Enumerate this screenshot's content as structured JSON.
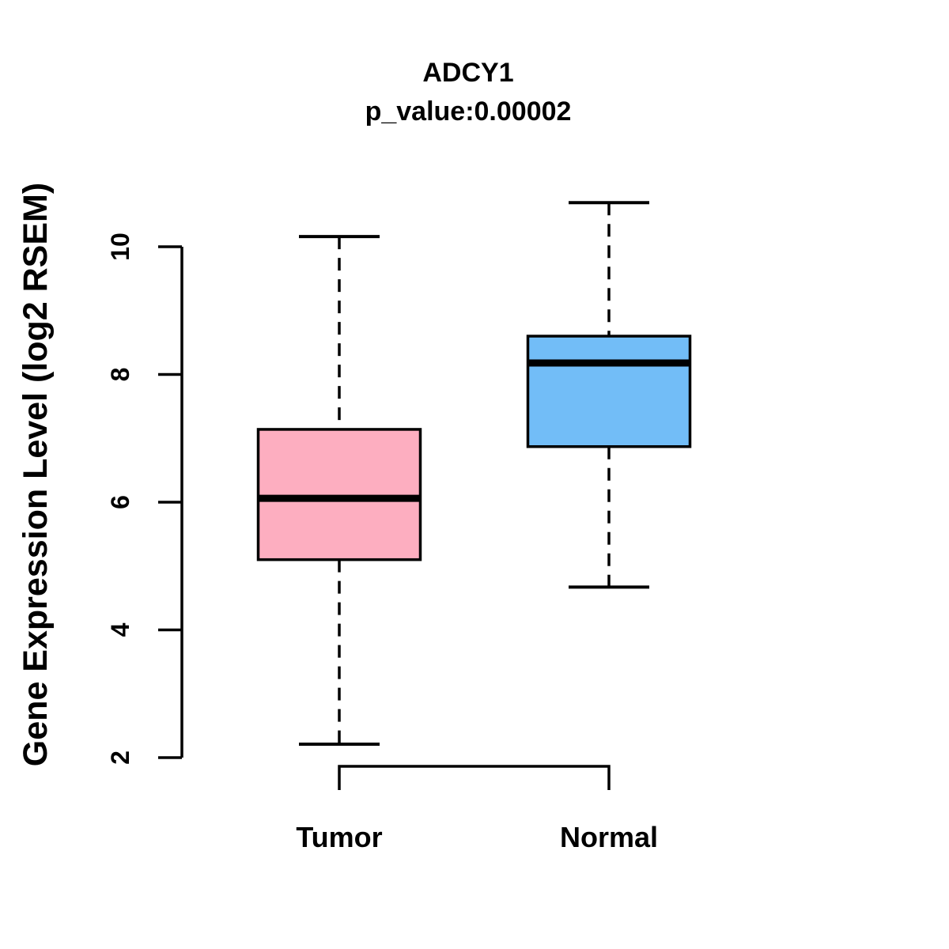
{
  "chart_data": {
    "type": "boxplot",
    "title": "ADCY1",
    "subtitle": "p_value:0.00002",
    "ylabel": "Gene Expression Level (log2 RSEM)",
    "xlabel": "",
    "categories": [
      "Tumor",
      "Normal"
    ],
    "yticks": [
      2,
      4,
      6,
      8,
      10
    ],
    "ylim": [
      2,
      10
    ],
    "grid": false,
    "legend": "none",
    "series": [
      {
        "name": "Tumor",
        "fill_color": "#FDAEC0",
        "min": 2.21,
        "q1": 5.1,
        "median": 6.06,
        "q3": 7.14,
        "max": 10.16
      },
      {
        "name": "Normal",
        "fill_color": "#72BDF7",
        "min": 4.67,
        "q1": 6.87,
        "median": 8.18,
        "q3": 8.6,
        "max": 10.69
      }
    ],
    "stroke_color": "#000000",
    "background_color": "#FFFFFF"
  }
}
